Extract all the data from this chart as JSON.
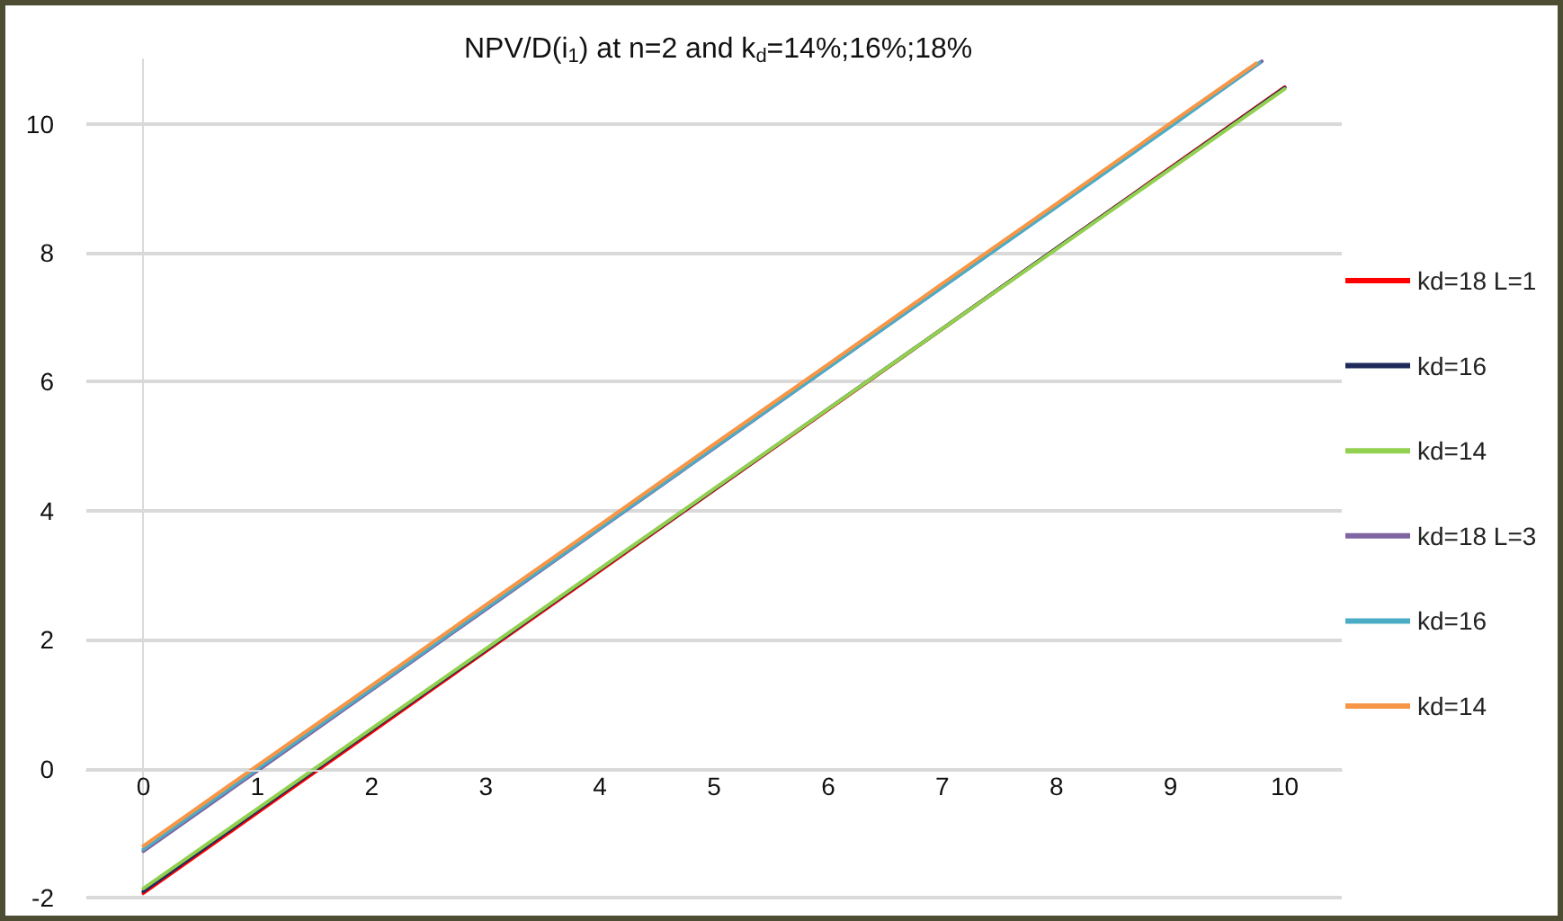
{
  "chart_data": {
    "type": "line",
    "title": "NPV/D(i$_{1}$) at n=2 and k$_{d}$=14%;16%;18%",
    "xlim": [
      -0.5,
      10.5
    ],
    "xticks": [
      0,
      1,
      2,
      3,
      4,
      5,
      6,
      7,
      8,
      9,
      10
    ],
    "ylim": [
      -2,
      11
    ],
    "yticks": [
      -2,
      0,
      2,
      4,
      6,
      8,
      10
    ],
    "grid": "y",
    "legend": "right",
    "marker": "none",
    "line_style": "solid",
    "series": [
      {
        "name": "kd=18 L=1",
        "color": "#ff0000",
        "x": [
          0,
          1,
          2,
          3,
          4,
          5,
          6,
          7,
          8,
          9,
          10
        ],
        "values": [
          -1.93,
          -0.68,
          0.57,
          1.82,
          3.07,
          4.32,
          5.57,
          6.82,
          8.07,
          9.32,
          10.57
        ]
      },
      {
        "name": "kd=16",
        "color": "#1f2a5c",
        "x": [
          0,
          1,
          2,
          3,
          4,
          5,
          6,
          7,
          8,
          9,
          10
        ],
        "values": [
          -1.9,
          -0.65,
          0.6,
          1.84,
          3.09,
          4.33,
          5.58,
          6.82,
          8.07,
          9.31,
          10.56
        ]
      },
      {
        "name": "kd=14",
        "color": "#92d050",
        "x": [
          0,
          1,
          2,
          3,
          4,
          5,
          6,
          7,
          8,
          9,
          10
        ],
        "values": [
          -1.86,
          -0.62,
          0.62,
          1.86,
          3.1,
          4.34,
          5.58,
          6.82,
          8.06,
          9.3,
          10.54
        ]
      },
      {
        "name": "kd=18 L=3",
        "color": "#8064a2",
        "x": [
          0,
          1,
          2,
          3,
          4,
          5,
          6,
          7,
          8,
          9,
          9.8
        ],
        "values": [
          -1.28,
          -0.03,
          1.22,
          2.47,
          3.72,
          4.97,
          6.22,
          7.47,
          8.72,
          9.97,
          10.97
        ]
      },
      {
        "name": "kd=16",
        "color": "#4bacc6",
        "x": [
          0,
          1,
          2,
          3,
          4,
          5,
          6,
          7,
          8,
          9,
          9.78
        ],
        "values": [
          -1.25,
          0,
          1.24,
          2.49,
          3.73,
          4.98,
          6.22,
          7.47,
          8.71,
          9.96,
          10.95
        ]
      },
      {
        "name": "kd=14",
        "color": "#f79646",
        "x": [
          0,
          1,
          2,
          3,
          4,
          5,
          6,
          7,
          8,
          9,
          9.75
        ],
        "values": [
          -1.2,
          0.05,
          1.29,
          2.54,
          3.78,
          5.03,
          6.27,
          7.52,
          8.76,
          10.01,
          10.94
        ]
      }
    ]
  }
}
